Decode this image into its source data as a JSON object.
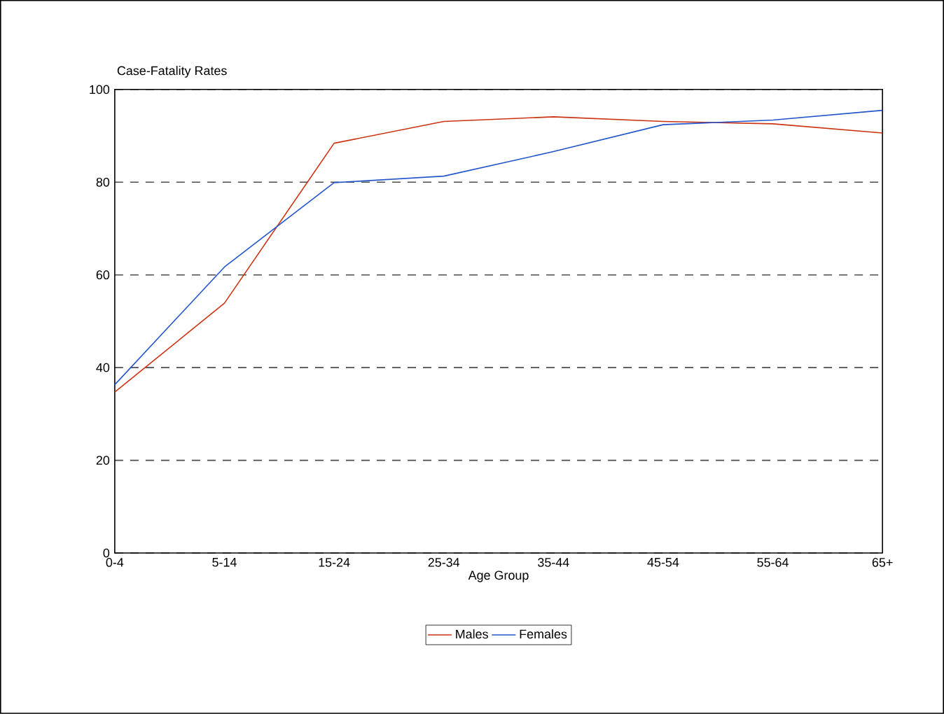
{
  "chart_data": {
    "type": "line",
    "title": "Case-Fatality Rates",
    "xlabel": "Age Group",
    "categories": [
      "0-4",
      "5-14",
      "15-24",
      "25-34",
      "35-44",
      "45-54",
      "55-64",
      "65+"
    ],
    "series": [
      {
        "name": "Males",
        "color": "#cc3311",
        "values": [
          34.7,
          53.9,
          88.4,
          93.1,
          94.1,
          93.1,
          92.6,
          90.6
        ]
      },
      {
        "name": "Females",
        "color": "#2255cc",
        "values": [
          36.3,
          61.7,
          79.9,
          81.3,
          86.6,
          92.4,
          93.4,
          95.5
        ]
      }
    ],
    "ylim": [
      0,
      100
    ],
    "yticks": [
      0,
      20,
      40,
      60,
      80,
      100
    ],
    "grid": "y",
    "legend": "bottom",
    "line_style": "solid"
  }
}
